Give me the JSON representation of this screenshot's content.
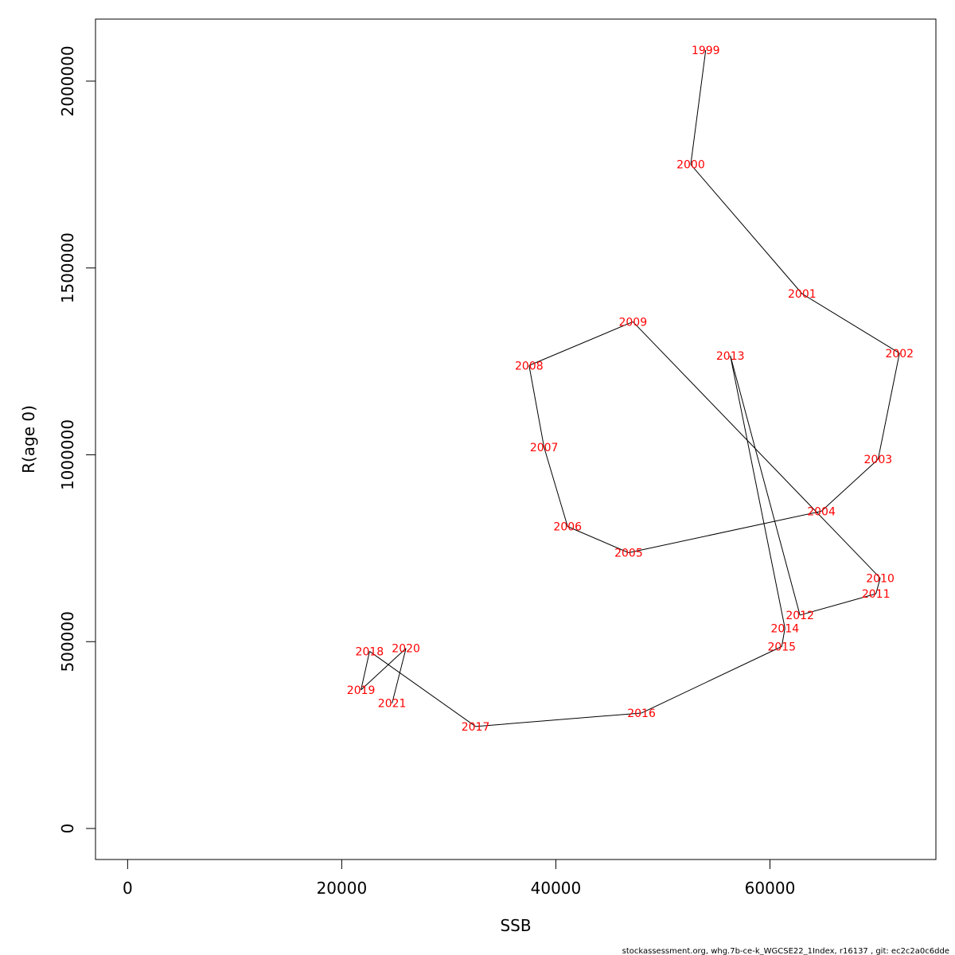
{
  "chart_data": {
    "type": "line",
    "xlabel": "SSB",
    "ylabel": "R(age 0)",
    "xlim": [
      -3000,
      75500
    ],
    "ylim": [
      -83000,
      2166000
    ],
    "x_ticks": [
      0,
      20000,
      40000,
      60000
    ],
    "y_ticks": [
      0,
      500000,
      1000000,
      1500000,
      2000000
    ],
    "series": [
      {
        "points": [
          {
            "label": "1999",
            "x": 54000,
            "y": 2083000
          },
          {
            "label": "2000",
            "x": 52600,
            "y": 1777000
          },
          {
            "label": "2001",
            "x": 63000,
            "y": 1431000
          },
          {
            "label": "2002",
            "x": 72100,
            "y": 1272000
          },
          {
            "label": "2003",
            "x": 70100,
            "y": 988000
          },
          {
            "label": "2004",
            "x": 64800,
            "y": 849000
          },
          {
            "label": "2005",
            "x": 46800,
            "y": 738000
          },
          {
            "label": "2006",
            "x": 41100,
            "y": 808000
          },
          {
            "label": "2007",
            "x": 38900,
            "y": 1020000
          },
          {
            "label": "2008",
            "x": 37500,
            "y": 1239000
          },
          {
            "label": "2009",
            "x": 47200,
            "y": 1356000
          },
          {
            "label": "2010",
            "x": 70300,
            "y": 670000
          },
          {
            "label": "2011",
            "x": 69900,
            "y": 628000
          },
          {
            "label": "2012",
            "x": 62800,
            "y": 571000
          },
          {
            "label": "2013",
            "x": 56300,
            "y": 1265000
          },
          {
            "label": "2014",
            "x": 61400,
            "y": 536000
          },
          {
            "label": "2015",
            "x": 61100,
            "y": 487000
          },
          {
            "label": "2016",
            "x": 48000,
            "y": 309000
          },
          {
            "label": "2017",
            "x": 32500,
            "y": 273000
          },
          {
            "label": "2018",
            "x": 22600,
            "y": 474000
          },
          {
            "label": "2019",
            "x": 21800,
            "y": 371000
          },
          {
            "label": "2020",
            "x": 26000,
            "y": 482000
          },
          {
            "label": "2021",
            "x": 24700,
            "y": 335000
          }
        ]
      }
    ]
  },
  "footer": "stockassessment.org, whg.7b-ce-k_WGCSE22_1Index, r16137 , git: ec2c2a0c6dde"
}
